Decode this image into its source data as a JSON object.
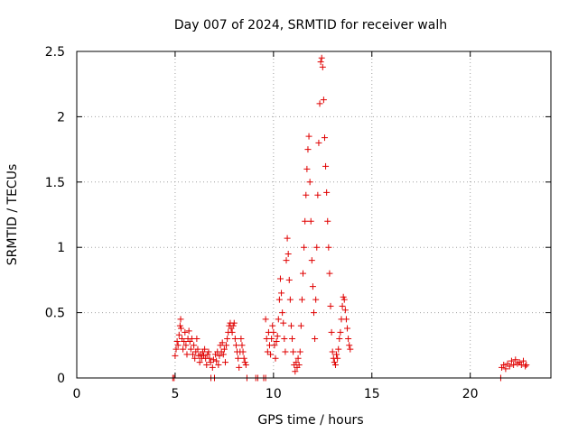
{
  "chart_data": {
    "type": "scatter",
    "title": "Day 007 of 2024, SRMTID for receiver walh",
    "xlabel": "GPS time / hours",
    "ylabel": "SRMTID / TECUs",
    "xlim": [
      0,
      24.1
    ],
    "ylim": [
      0,
      2.5
    ],
    "xticks": [
      0,
      5,
      10,
      15,
      20
    ],
    "yticks": [
      0,
      0.5,
      1,
      1.5,
      2,
      2.5
    ],
    "xtick_labels": [
      "0",
      "5",
      "10",
      "15",
      "20"
    ],
    "ytick_labels": [
      "0",
      "0.5",
      "1",
      "1.5",
      "2",
      "2.5"
    ],
    "grid": true,
    "marker": "+",
    "color": "#e00000",
    "series": [
      {
        "name": "walh",
        "points": [
          [
            4.88,
            0.0
          ],
          [
            4.95,
            0.0
          ],
          [
            5.0,
            0.17
          ],
          [
            5.05,
            0.22
          ],
          [
            5.1,
            0.28
          ],
          [
            5.15,
            0.25
          ],
          [
            5.2,
            0.33
          ],
          [
            5.25,
            0.4
          ],
          [
            5.28,
            0.45
          ],
          [
            5.3,
            0.38
          ],
          [
            5.35,
            0.3
          ],
          [
            5.4,
            0.22
          ],
          [
            5.45,
            0.28
          ],
          [
            5.5,
            0.35
          ],
          [
            5.55,
            0.25
          ],
          [
            5.6,
            0.18
          ],
          [
            5.65,
            0.3
          ],
          [
            5.7,
            0.36
          ],
          [
            5.75,
            0.28
          ],
          [
            5.8,
            0.22
          ],
          [
            5.85,
            0.3
          ],
          [
            5.9,
            0.18
          ],
          [
            5.95,
            0.25
          ],
          [
            6.0,
            0.15
          ],
          [
            6.05,
            0.2
          ],
          [
            6.1,
            0.3
          ],
          [
            6.15,
            0.22
          ],
          [
            6.2,
            0.17
          ],
          [
            6.25,
            0.12
          ],
          [
            6.3,
            0.18
          ],
          [
            6.35,
            0.15
          ],
          [
            6.4,
            0.2
          ],
          [
            6.45,
            0.17
          ],
          [
            6.5,
            0.22
          ],
          [
            6.55,
            0.15
          ],
          [
            6.6,
            0.1
          ],
          [
            6.65,
            0.18
          ],
          [
            6.7,
            0.2
          ],
          [
            6.75,
            0.15
          ],
          [
            6.8,
            0.12
          ],
          [
            6.82,
            0.0
          ],
          [
            6.9,
            0.08
          ],
          [
            6.95,
            0.14
          ],
          [
            7.0,
            0.0
          ],
          [
            7.05,
            0.18
          ],
          [
            7.1,
            0.13
          ],
          [
            7.15,
            0.2
          ],
          [
            7.2,
            0.1
          ],
          [
            7.25,
            0.17
          ],
          [
            7.3,
            0.25
          ],
          [
            7.35,
            0.2
          ],
          [
            7.4,
            0.27
          ],
          [
            7.45,
            0.18
          ],
          [
            7.5,
            0.22
          ],
          [
            7.55,
            0.12
          ],
          [
            7.6,
            0.25
          ],
          [
            7.65,
            0.3
          ],
          [
            7.7,
            0.35
          ],
          [
            7.75,
            0.4
          ],
          [
            7.8,
            0.42
          ],
          [
            7.85,
            0.38
          ],
          [
            7.9,
            0.35
          ],
          [
            7.95,
            0.4
          ],
          [
            8.0,
            0.42
          ],
          [
            8.05,
            0.3
          ],
          [
            8.1,
            0.25
          ],
          [
            8.15,
            0.2
          ],
          [
            8.2,
            0.15
          ],
          [
            8.25,
            0.08
          ],
          [
            8.3,
            0.2
          ],
          [
            8.35,
            0.3
          ],
          [
            8.4,
            0.25
          ],
          [
            8.45,
            0.2
          ],
          [
            8.5,
            0.15
          ],
          [
            8.55,
            0.12
          ],
          [
            8.6,
            0.1
          ],
          [
            8.65,
            0.0
          ],
          [
            9.1,
            0.0
          ],
          [
            9.2,
            0.0
          ],
          [
            9.5,
            0.0
          ],
          [
            9.6,
            0.0
          ],
          [
            9.6,
            0.45
          ],
          [
            9.65,
            0.3
          ],
          [
            9.7,
            0.2
          ],
          [
            9.75,
            0.35
          ],
          [
            9.8,
            0.25
          ],
          [
            9.85,
            0.18
          ],
          [
            9.9,
            0.3
          ],
          [
            9.95,
            0.4
          ],
          [
            10.0,
            0.35
          ],
          [
            10.05,
            0.25
          ],
          [
            10.1,
            0.15
          ],
          [
            10.15,
            0.28
          ],
          [
            10.2,
            0.32
          ],
          [
            10.25,
            0.45
          ],
          [
            10.3,
            0.6
          ],
          [
            10.35,
            0.76
          ],
          [
            10.4,
            0.65
          ],
          [
            10.45,
            0.5
          ],
          [
            10.5,
            0.42
          ],
          [
            10.55,
            0.3
          ],
          [
            10.6,
            0.2
          ],
          [
            10.65,
            0.9
          ],
          [
            10.7,
            1.07
          ],
          [
            10.75,
            0.95
          ],
          [
            10.8,
            0.75
          ],
          [
            10.85,
            0.6
          ],
          [
            10.9,
            0.4
          ],
          [
            10.95,
            0.3
          ],
          [
            11.0,
            0.2
          ],
          [
            11.05,
            0.1
          ],
          [
            11.1,
            0.05
          ],
          [
            11.15,
            0.12
          ],
          [
            11.2,
            0.08
          ],
          [
            11.25,
            0.15
          ],
          [
            11.3,
            0.1
          ],
          [
            11.35,
            0.2
          ],
          [
            11.4,
            0.4
          ],
          [
            11.45,
            0.6
          ],
          [
            11.5,
            0.8
          ],
          [
            11.55,
            1.0
          ],
          [
            11.6,
            1.2
          ],
          [
            11.65,
            1.4
          ],
          [
            11.7,
            1.6
          ],
          [
            11.75,
            1.75
          ],
          [
            11.8,
            1.85
          ],
          [
            11.85,
            1.5
          ],
          [
            11.9,
            1.2
          ],
          [
            11.95,
            0.9
          ],
          [
            12.0,
            0.7
          ],
          [
            12.05,
            0.5
          ],
          [
            12.1,
            0.3
          ],
          [
            12.15,
            0.6
          ],
          [
            12.2,
            1.0
          ],
          [
            12.25,
            1.4
          ],
          [
            12.3,
            1.8
          ],
          [
            12.35,
            2.1
          ],
          [
            12.4,
            2.42
          ],
          [
            12.45,
            2.45
          ],
          [
            12.5,
            2.38
          ],
          [
            12.55,
            2.13
          ],
          [
            12.6,
            1.84
          ],
          [
            12.65,
            1.62
          ],
          [
            12.7,
            1.42
          ],
          [
            12.75,
            1.2
          ],
          [
            12.8,
            1.0
          ],
          [
            12.85,
            0.8
          ],
          [
            12.9,
            0.55
          ],
          [
            12.95,
            0.35
          ],
          [
            13.0,
            0.2
          ],
          [
            13.05,
            0.15
          ],
          [
            13.1,
            0.12
          ],
          [
            13.15,
            0.1
          ],
          [
            13.2,
            0.18
          ],
          [
            13.25,
            0.15
          ],
          [
            13.3,
            0.22
          ],
          [
            13.35,
            0.3
          ],
          [
            13.4,
            0.35
          ],
          [
            13.45,
            0.45
          ],
          [
            13.5,
            0.55
          ],
          [
            13.55,
            0.62
          ],
          [
            13.6,
            0.6
          ],
          [
            13.65,
            0.52
          ],
          [
            13.7,
            0.45
          ],
          [
            13.75,
            0.38
          ],
          [
            13.8,
            0.3
          ],
          [
            13.85,
            0.25
          ],
          [
            13.9,
            0.22
          ],
          [
            21.55,
            0.0
          ],
          [
            21.6,
            0.08
          ],
          [
            21.7,
            0.1
          ],
          [
            21.8,
            0.07
          ],
          [
            21.9,
            0.11
          ],
          [
            22.0,
            0.09
          ],
          [
            22.1,
            0.13
          ],
          [
            22.2,
            0.1
          ],
          [
            22.3,
            0.14
          ],
          [
            22.4,
            0.11
          ],
          [
            22.5,
            0.12
          ],
          [
            22.6,
            0.1
          ],
          [
            22.7,
            0.13
          ],
          [
            22.8,
            0.09
          ],
          [
            22.85,
            0.1
          ]
        ]
      }
    ]
  }
}
